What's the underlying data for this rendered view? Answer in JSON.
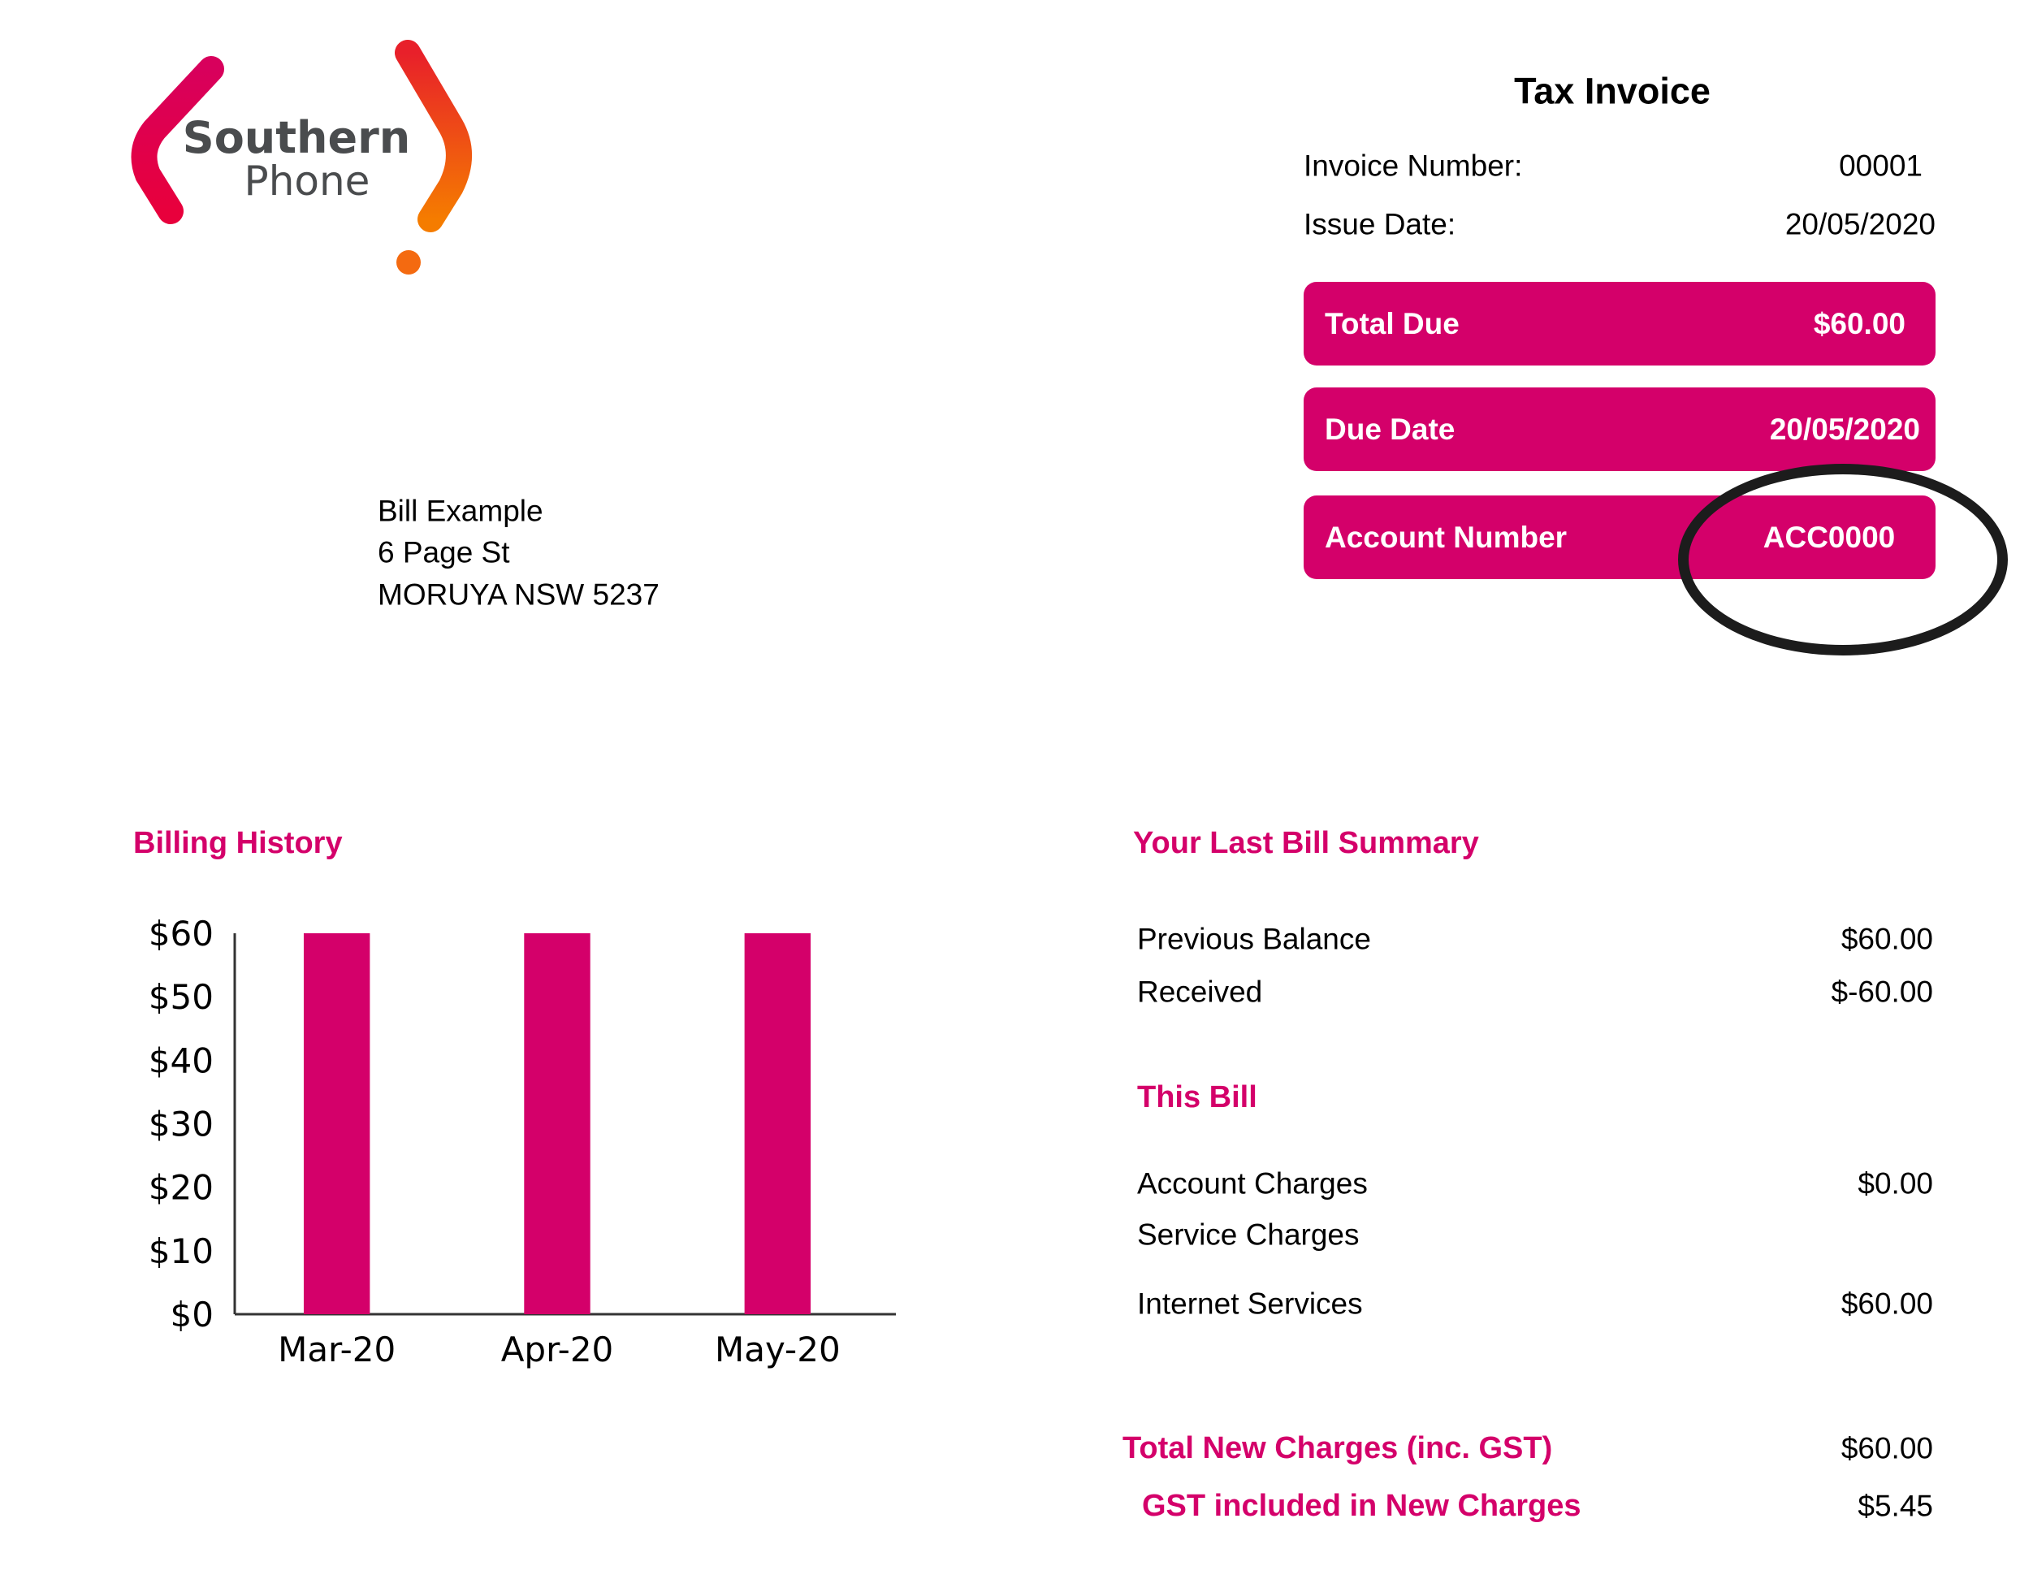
{
  "logo": {
    "line1": "Southern",
    "line2": "Phone",
    "colors": [
      "#e0004d",
      "#f57c00"
    ]
  },
  "invoice": {
    "title": "Tax Invoice",
    "number_label": "Invoice Number:",
    "number_value": "00001",
    "issue_label": "Issue Date:",
    "issue_value": "20/05/2020",
    "total_due_label": "Total Due",
    "total_due_value": "$60.00",
    "due_date_label": "Due Date",
    "due_date_value": "20/05/2020",
    "account_label": "Account Number",
    "account_value": "ACC0000",
    "accent": "#d4006a"
  },
  "address": {
    "name": "Bill Example",
    "street": "6 Page St",
    "city": "MORUYA NSW 5237"
  },
  "billing_history": {
    "title": "Billing History"
  },
  "chart_data": {
    "type": "bar",
    "title": "",
    "categories": [
      "Mar-20",
      "Apr-20",
      "May-20"
    ],
    "values": [
      60,
      60,
      60
    ],
    "ylim": [
      0,
      60
    ],
    "yticks": [
      "$0",
      "$10",
      "$20",
      "$30",
      "$40",
      "$50",
      "$60"
    ],
    "grid": false,
    "color": "#d4006a"
  },
  "summary": {
    "title": "Your Last Bill Summary",
    "previous_balance_label": "Previous Balance",
    "previous_balance_value": "$60.00",
    "received_label": "Received",
    "received_value": "$-60.00",
    "this_bill_title": "This Bill",
    "account_charges_label": "Account Charges",
    "account_charges_value": "$0.00",
    "service_charges_label": "Service Charges",
    "internet_label": "Internet Services",
    "internet_value": "$60.00",
    "total_new_label": "Total New Charges (inc. GST)",
    "total_new_value": "$60.00",
    "gst_label": "GST included in New Charges",
    "gst_value": "$5.45"
  }
}
